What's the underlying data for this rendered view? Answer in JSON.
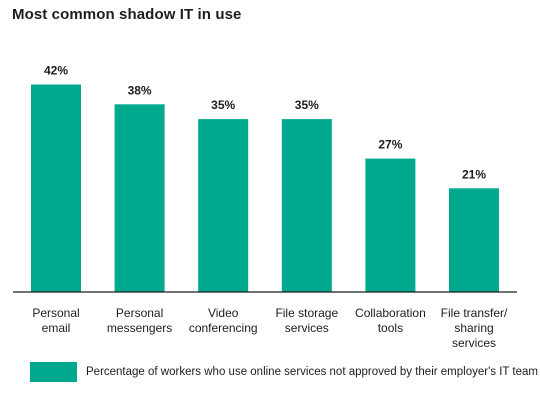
{
  "accent_color": "#00a88e",
  "chart_data": {
    "type": "bar",
    "title": "Most common shadow IT in use",
    "categories": [
      [
        "Personal",
        "email"
      ],
      [
        "Personal",
        "messengers"
      ],
      [
        "Video",
        "conferencing"
      ],
      [
        "File storage",
        "services"
      ],
      [
        "Collaboration",
        "tools"
      ],
      [
        "File transfer/",
        "sharing",
        "services"
      ]
    ],
    "values": [
      42,
      38,
      35,
      35,
      27,
      21
    ],
    "value_labels": [
      "42%",
      "38%",
      "35%",
      "35%",
      "27%",
      "21%"
    ],
    "unit": "%",
    "ylim": [
      0,
      50
    ],
    "grid": false,
    "legend": {
      "position": "bottom",
      "label": "Percentage of workers who use online services not approved by their employer's IT team"
    }
  }
}
